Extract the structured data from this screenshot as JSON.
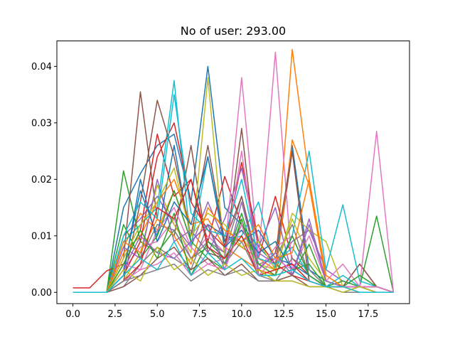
{
  "chart_data": {
    "type": "line",
    "title": "No of user: 293.00",
    "xlabel": "",
    "ylabel": "",
    "xlim": [
      -0.95,
      19.95
    ],
    "ylim": [
      -0.002,
      0.0445
    ],
    "xticks": [
      0.0,
      2.5,
      5.0,
      7.5,
      10.0,
      12.5,
      15.0,
      17.5
    ],
    "xtick_labels": [
      "0.0",
      "2.5",
      "5.0",
      "7.5",
      "10.0",
      "12.5",
      "15.0",
      "17.5"
    ],
    "yticks": [
      0.0,
      0.01,
      0.02,
      0.03,
      0.04
    ],
    "ytick_labels": [
      "0.00",
      "0.01",
      "0.02",
      "0.03",
      "0.04"
    ],
    "grid": false,
    "legend": "none",
    "x": [
      0,
      1,
      2,
      3,
      4,
      5,
      6,
      7,
      8,
      9,
      10,
      11,
      12,
      13,
      14,
      15,
      16,
      17,
      18,
      19
    ],
    "series": [
      {
        "color": "#1f77b4",
        "values": [
          0,
          0,
          0,
          0.015,
          0.021,
          0.026,
          0.028,
          0.016,
          0.04,
          0.015,
          0.012,
          0.008,
          0.005,
          0.026,
          0.004,
          0.002,
          0.001,
          0.001,
          0.001,
          0
        ]
      },
      {
        "color": "#ff7f0e",
        "values": [
          0,
          0,
          0,
          0.008,
          0.014,
          0.011,
          0.018,
          0.009,
          0.012,
          0.01,
          0.008,
          0.006,
          0.004,
          0.043,
          0.02,
          0.003,
          0.001,
          0.001,
          0,
          0
        ]
      },
      {
        "color": "#2ca02c",
        "values": [
          0,
          0,
          0,
          0.0215,
          0.009,
          0.007,
          0.011,
          0.006,
          0.008,
          0.005,
          0.014,
          0.004,
          0.002,
          0.003,
          0.0085,
          0.001,
          0.001,
          0.001,
          0.0135,
          0
        ]
      },
      {
        "color": "#d62728",
        "values": [
          0.0008,
          0.0008,
          0.0038,
          0.005,
          0.011,
          0.028,
          0.017,
          0.02,
          0.009,
          0.0205,
          0.012,
          0.006,
          0.017,
          0.006,
          0.003,
          0.001,
          0.001,
          0.005,
          0.001,
          0
        ]
      },
      {
        "color": "#9467bd",
        "values": [
          0,
          0,
          0,
          0.01,
          0.013,
          0.017,
          0.012,
          0.008,
          0.016,
          0.009,
          0.011,
          0.007,
          0.005,
          0.009,
          0.011,
          0.004,
          0.002,
          0.001,
          0.001,
          0
        ]
      },
      {
        "color": "#8c564b",
        "values": [
          0,
          0,
          0,
          0.006,
          0.0355,
          0.013,
          0.01,
          0.026,
          0.007,
          0.006,
          0.029,
          0.003,
          0.004,
          0.025,
          0.002,
          0.001,
          0.001,
          0.005,
          0.001,
          0
        ]
      },
      {
        "color": "#e377c2",
        "values": [
          0,
          0,
          0,
          0.004,
          0.008,
          0.009,
          0.013,
          0.006,
          0.01,
          0.007,
          0.038,
          0.006,
          0.0425,
          0.004,
          0.01,
          0.002,
          0.005,
          0.001,
          0.0285,
          0
        ]
      },
      {
        "color": "#7f7f7f",
        "values": [
          0,
          0,
          0,
          0.003,
          0.006,
          0.012,
          0.011,
          0.006,
          0.009,
          0.007,
          0.017,
          0.005,
          0.006,
          0.012,
          0.003,
          0.001,
          0.001,
          0.001,
          0.001,
          0
        ]
      },
      {
        "color": "#bcbd22",
        "values": [
          0,
          0,
          0,
          0.002,
          0.007,
          0.019,
          0.012,
          0.007,
          0.038,
          0.006,
          0.01,
          0.005,
          0.004,
          0.014,
          0.011,
          0.009,
          0.001,
          0.001,
          0.001,
          0
        ]
      },
      {
        "color": "#17becf",
        "values": [
          0,
          0,
          0,
          0.009,
          0.012,
          0.015,
          0.0375,
          0.008,
          0.024,
          0.009,
          0.01,
          0.016,
          0.004,
          0.01,
          0.025,
          0.004,
          0.0155,
          0.002,
          0.001,
          0
        ]
      },
      {
        "color": "#1f77b4",
        "values": [
          0,
          0,
          0,
          0.004,
          0.018,
          0.01,
          0.026,
          0.009,
          0.012,
          0.01,
          0.009,
          0.011,
          0.006,
          0.005,
          0.003,
          0.001,
          0.001,
          0.001,
          0,
          0
        ]
      },
      {
        "color": "#ff7f0e",
        "values": [
          0,
          0,
          0,
          0.007,
          0.01,
          0.016,
          0.02,
          0.012,
          0.013,
          0.008,
          0.006,
          0.004,
          0.003,
          0.027,
          0.019,
          0.002,
          0.001,
          0,
          0,
          0
        ]
      },
      {
        "color": "#2ca02c",
        "values": [
          0,
          0,
          0,
          0.012,
          0.006,
          0.01,
          0.018,
          0.009,
          0.006,
          0.004,
          0.013,
          0.003,
          0.003,
          0.004,
          0.005,
          0.001,
          0.002,
          0.001,
          0.001,
          0
        ]
      },
      {
        "color": "#d62728",
        "values": [
          0,
          0,
          0,
          0.003,
          0.009,
          0.024,
          0.03,
          0.016,
          0.011,
          0.008,
          0.023,
          0.009,
          0.005,
          0.003,
          0.002,
          0.001,
          0.001,
          0.001,
          0.001,
          0
        ]
      },
      {
        "color": "#9467bd",
        "values": [
          0,
          0,
          0,
          0.008,
          0.006,
          0.02,
          0.009,
          0.011,
          0.007,
          0.013,
          0.022,
          0.008,
          0.015,
          0.003,
          0.012,
          0.002,
          0.001,
          0.001,
          0.001,
          0
        ]
      },
      {
        "color": "#8c564b",
        "values": [
          0,
          0,
          0,
          0.002,
          0.016,
          0.034,
          0.024,
          0.01,
          0.026,
          0.009,
          0.017,
          0.004,
          0.007,
          0.025,
          0.002,
          0.001,
          0.001,
          0.001,
          0.001,
          0
        ]
      },
      {
        "color": "#e377c2",
        "values": [
          0,
          0,
          0,
          0.005,
          0.004,
          0.011,
          0.015,
          0.008,
          0.005,
          0.006,
          0.025,
          0.004,
          0.008,
          0.01,
          0.003,
          0.001,
          0.001,
          0.001,
          0.001,
          0
        ]
      },
      {
        "color": "#7f7f7f",
        "values": [
          0,
          0,
          0,
          0.001,
          0.005,
          0.008,
          0.006,
          0.004,
          0.012,
          0.005,
          0.009,
          0.003,
          0.002,
          0.006,
          0.004,
          0.001,
          0.001,
          0.001,
          0.001,
          0
        ]
      },
      {
        "color": "#bcbd22",
        "values": [
          0,
          0,
          0,
          0.006,
          0.012,
          0.016,
          0.022,
          0.01,
          0.014,
          0.012,
          0.008,
          0.009,
          0.004,
          0.013,
          0.006,
          0.002,
          0.001,
          0.001,
          0.001,
          0
        ]
      },
      {
        "color": "#17becf",
        "values": [
          0,
          0,
          0,
          0.01,
          0.016,
          0.013,
          0.035,
          0.014,
          0.011,
          0.01,
          0.02,
          0.006,
          0.005,
          0.008,
          0.003,
          0.001,
          0.003,
          0.001,
          0.001,
          0
        ]
      },
      {
        "color": "#1f77b4",
        "values": [
          0,
          0,
          0,
          0.003,
          0.02,
          0.009,
          0.016,
          0.012,
          0.024,
          0.008,
          0.011,
          0.007,
          0.009,
          0.004,
          0.002,
          0.001,
          0.001,
          0.001,
          0,
          0
        ]
      },
      {
        "color": "#ff7f0e",
        "values": [
          0,
          0,
          0,
          0.009,
          0.007,
          0.013,
          0.01,
          0.005,
          0.015,
          0.011,
          0.009,
          0.012,
          0.006,
          0.007,
          0.02,
          0.003,
          0.001,
          0.001,
          0.001,
          0
        ]
      },
      {
        "color": "#2ca02c",
        "values": [
          0,
          0,
          0,
          0.005,
          0.011,
          0.006,
          0.014,
          0.003,
          0.009,
          0.006,
          0.012,
          0.005,
          0.003,
          0.01,
          0.003,
          0.001,
          0.001,
          0.003,
          0.001,
          0
        ]
      },
      {
        "color": "#d62728",
        "values": [
          0,
          0,
          0,
          0.002,
          0.005,
          0.015,
          0.013,
          0.02,
          0.008,
          0.006,
          0.01,
          0.003,
          0.004,
          0.005,
          0.002,
          0.001,
          0.001,
          0.001,
          0.001,
          0
        ]
      },
      {
        "color": "#9467bd",
        "values": [
          0,
          0,
          0,
          0.004,
          0.01,
          0.007,
          0.006,
          0.009,
          0.012,
          0.004,
          0.016,
          0.004,
          0.007,
          0.003,
          0.013,
          0.002,
          0.001,
          0.001,
          0.001,
          0
        ]
      },
      {
        "color": "#8c564b",
        "values": [
          0,
          0,
          0,
          0.001,
          0.003,
          0.006,
          0.008,
          0.004,
          0.006,
          0.003,
          0.005,
          0.002,
          0.002,
          0.003,
          0.001,
          0.001,
          0,
          0.001,
          0,
          0
        ]
      },
      {
        "color": "#e377c2",
        "values": [
          0,
          0,
          0,
          0.002,
          0.004,
          0.005,
          0.007,
          0.003,
          0.005,
          0.004,
          0.012,
          0.003,
          0.006,
          0.004,
          0.002,
          0.001,
          0.001,
          0.001,
          0.001,
          0
        ]
      },
      {
        "color": "#7f7f7f",
        "values": [
          0,
          0,
          0,
          0.002,
          0.003,
          0.004,
          0.005,
          0.002,
          0.004,
          0.003,
          0.004,
          0.002,
          0.002,
          0.002,
          0.001,
          0.001,
          0,
          0,
          0,
          0
        ]
      },
      {
        "color": "#bcbd22",
        "values": [
          0,
          0,
          0,
          0.004,
          0.002,
          0.008,
          0.004,
          0.006,
          0.003,
          0.005,
          0.003,
          0.004,
          0.002,
          0.002,
          0.001,
          0.001,
          0,
          0.001,
          0,
          0
        ]
      },
      {
        "color": "#17becf",
        "values": [
          0,
          0,
          0,
          0.003,
          0.006,
          0.004,
          0.009,
          0.003,
          0.007,
          0.004,
          0.006,
          0.003,
          0.003,
          0.004,
          0.002,
          0.001,
          0.001,
          0,
          0,
          0
        ]
      }
    ]
  }
}
